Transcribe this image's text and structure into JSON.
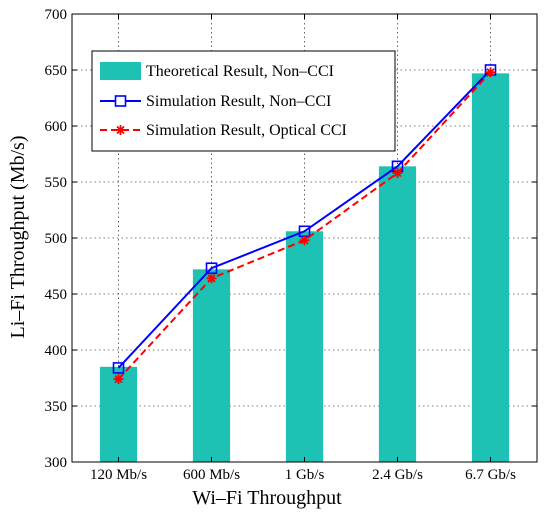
{
  "chart_data": {
    "type": "bar",
    "categories": [
      "120 Mb/s",
      "600 Mb/s",
      "1 Gb/s",
      "2.4 Gb/s",
      "6.7 Gb/s"
    ],
    "xlabel": "Wi–Fi Throughput",
    "ylabel": "Li–Fi Throughput (Mb/s)",
    "ylim": [
      300,
      700
    ],
    "yticks": [
      300,
      350,
      400,
      450,
      500,
      550,
      600,
      650,
      700
    ],
    "grid": true,
    "legend_position": "top-left",
    "series": [
      {
        "name": "Theoretical Result, Non–CCI",
        "kind": "bar",
        "color": "#1dc2b5",
        "values": [
          385,
          472,
          506,
          564,
          647
        ]
      },
      {
        "name": "Simulation Result, Non–CCI",
        "kind": "line",
        "marker": "square",
        "line_style": "solid",
        "color": "#0000ff",
        "values": [
          384,
          473,
          506,
          564,
          650
        ]
      },
      {
        "name": "Simulation Result, Optical CCI",
        "kind": "line",
        "marker": "asterisk",
        "line_style": "dashed",
        "color": "#ff0000",
        "values": [
          374,
          464,
          498,
          558,
          648
        ]
      }
    ]
  }
}
